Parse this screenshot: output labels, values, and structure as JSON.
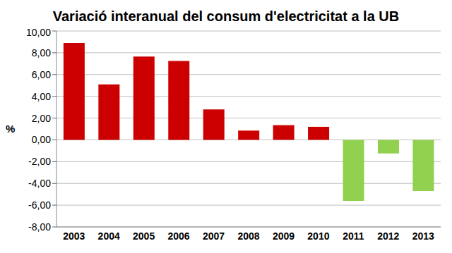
{
  "chart_data": {
    "type": "bar",
    "title": "Variació interanual del consum d'electricitat a la UB",
    "ylabel": "%",
    "categories": [
      "2003",
      "2004",
      "2005",
      "2006",
      "2007",
      "2008",
      "2009",
      "2010",
      "2011",
      "2012",
      "2013"
    ],
    "values": [
      8.9,
      5.1,
      7.65,
      7.25,
      2.8,
      0.85,
      1.35,
      1.2,
      -5.6,
      -1.25,
      -4.7
    ],
    "colors": [
      "#cc0000",
      "#cc0000",
      "#cc0000",
      "#cc0000",
      "#cc0000",
      "#cc0000",
      "#cc0000",
      "#cc0000",
      "#92d050",
      "#92d050",
      "#92d050"
    ],
    "ylim": [
      -8,
      10
    ],
    "yticks": [
      {
        "value": -8,
        "label": "-8,00"
      },
      {
        "value": -6,
        "label": "-6,00"
      },
      {
        "value": -4,
        "label": "-4,00"
      },
      {
        "value": -2,
        "label": "-2,00"
      },
      {
        "value": 0,
        "label": "0,00"
      },
      {
        "value": 2,
        "label": "2,00"
      },
      {
        "value": 4,
        "label": "4,00"
      },
      {
        "value": 6,
        "label": "6,00"
      },
      {
        "value": 8,
        "label": "8,00"
      },
      {
        "value": 10,
        "label": "10,00"
      }
    ],
    "grid": true
  }
}
